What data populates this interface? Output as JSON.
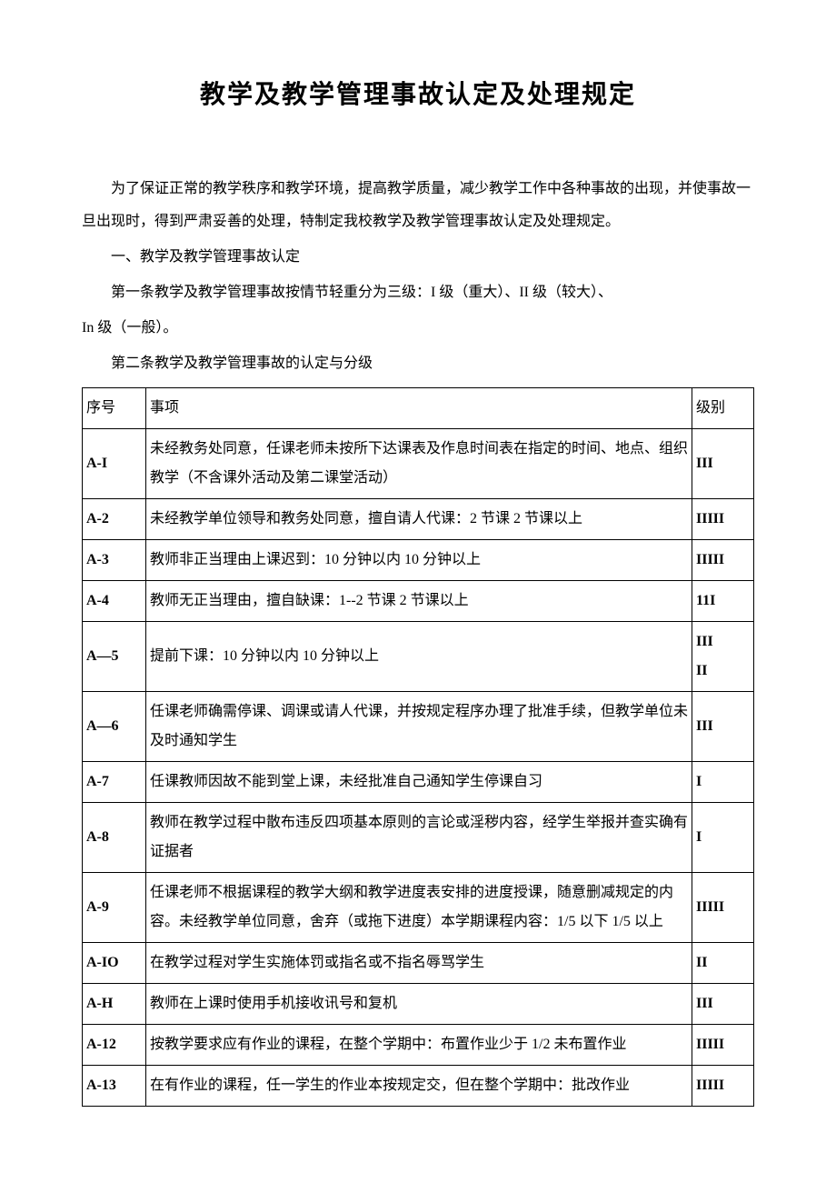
{
  "title": "教学及教学管理事故认定及处理规定",
  "intro": "为了保证正常的教学秩序和教学环境，提高教学质量，减少教学工作中各种事故的出现，并使事故一旦出现时，得到严肃妥善的处理，特制定我校教学及教学管理事故认定及处理规定。",
  "section1_title": "一、教学及教学管理事故认定",
  "article1_line1": "第一条教学及教学管理事故按情节轻重分为三级：I 级（重大）、II 级（较大）、",
  "article1_line2": "In 级（一般）。",
  "article2": "第二条教学及教学管理事故的认定与分级",
  "table": {
    "headers": {
      "seq": "序号",
      "item": "事项",
      "level": "级别"
    },
    "rows": [
      {
        "seq": "A-I",
        "item": "未经教务处同意，任课老师未按所下达课表及作息时间表在指定的时间、地点、组织教学（不含课外活动及第二课堂活动）",
        "level": "III"
      },
      {
        "seq": "A-2",
        "item": "未经教学单位领导和教务处同意，擅自请人代课：2 节课 2 节课以上",
        "level": "IIIII"
      },
      {
        "seq": "A-3",
        "item": "教师非正当理由上课迟到：10 分钟以内 10 分钟以上",
        "level": "IIIII"
      },
      {
        "seq": "A-4",
        "item": "教师无正当理由，擅自缺课：1--2 节课 2 节课以上",
        "level": "11I"
      },
      {
        "seq": "A—5",
        "item": "提前下课：10 分钟以内 10 分钟以上",
        "level": "III\nII"
      },
      {
        "seq": "A—6",
        "item": "任课老师确需停课、调课或请人代课，并按规定程序办理了批准手续，但教学单位未及时通知学生",
        "level": "III"
      },
      {
        "seq": "A-7",
        "item": "任课教师因故不能到堂上课，未经批准自己通知学生停课自习",
        "level": "I"
      },
      {
        "seq": "A-8",
        "item": "教师在教学过程中散布违反四项基本原则的言论或淫秽内容，经学生举报并查实确有证据者",
        "level": "I"
      },
      {
        "seq": "A-9",
        "item": "任课老师不根据课程的教学大纲和教学进度表安排的进度授课，随意删减规定的内容。未经教学单位同意，舍弃（或拖下进度）本学期课程内容：1/5 以下 1/5 以上",
        "level": "IIIII"
      },
      {
        "seq": "A-IO",
        "item": "在教学过程对学生实施体罚或指名或不指名辱骂学生",
        "level": "II"
      },
      {
        "seq": "A-H",
        "item": "教师在上课时使用手机接收讯号和复机",
        "level": "III"
      },
      {
        "seq": "A-12",
        "item": "按教学要求应有作业的课程，在整个学期中：布置作业少于 1/2 未布置作业",
        "level": "IIIII"
      },
      {
        "seq": "A-13",
        "item": "在有作业的课程，任一学生的作业本按规定交，但在整个学期中：批改作业",
        "level": "IIIII"
      }
    ]
  },
  "styles": {
    "background_color": "#ffffff",
    "text_color": "#000000",
    "border_color": "#000000",
    "title_fontsize": 28,
    "body_fontsize": 16,
    "font_family": "SimSun"
  }
}
